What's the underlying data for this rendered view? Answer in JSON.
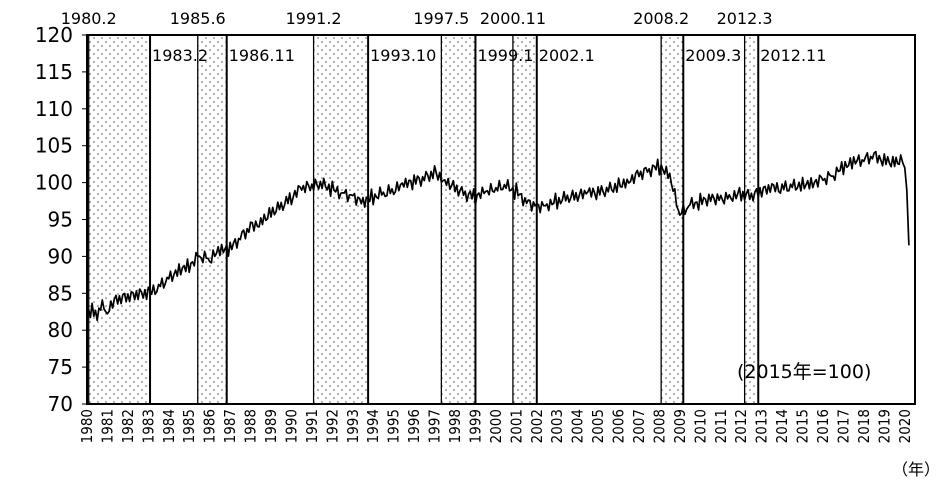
{
  "chart_data": {
    "type": "line",
    "title": "",
    "xlabel": "",
    "ylabel": "",
    "x_unit": "（年）",
    "note": "(2015年=100)",
    "xlim": [
      1980,
      2020.5
    ],
    "ylim": [
      70,
      120
    ],
    "y_ticks": [
      "120",
      "115",
      "110",
      "105",
      "100",
      "95",
      "90",
      "85",
      "80",
      "75",
      "70"
    ],
    "x_ticks": [
      "1980",
      "1981",
      "1982",
      "1983",
      "1984",
      "1985",
      "1986",
      "1987",
      "1988",
      "1989",
      "1990",
      "1991",
      "1992",
      "1993",
      "1994",
      "1995",
      "1996",
      "1997",
      "1998",
      "1999",
      "2000",
      "2001",
      "2002",
      "2003",
      "2004",
      "2005",
      "2006",
      "2007",
      "2008",
      "2009",
      "2010",
      "2011",
      "2012",
      "2013",
      "2014",
      "2015",
      "2016",
      "2017",
      "2018",
      "2019",
      "2020"
    ],
    "recession_bands": [
      {
        "start": "1980.2",
        "end": "1983.2"
      },
      {
        "start": "1985.6",
        "end": "1986.11"
      },
      {
        "start": "1991.2",
        "end": "1993.10"
      },
      {
        "start": "1997.5",
        "end": "1999.1"
      },
      {
        "start": "2000.11",
        "end": "2002.1"
      },
      {
        "start": "2008.2",
        "end": "2009.3"
      },
      {
        "start": "2012.3",
        "end": "2012.11"
      }
    ],
    "series": [
      {
        "x": [
          1980.0,
          1980.25,
          1980.5,
          1980.75,
          1981.0,
          1981.5,
          1982.0,
          1982.5,
          1983.0,
          1983.5,
          1984.0,
          1984.5,
          1985.0,
          1985.5,
          1986.0,
          1986.5,
          1987.0,
          1987.5,
          1988.0,
          1988.5,
          1989.0,
          1989.5,
          1990.0,
          1990.5,
          1991.0,
          1991.5,
          1992.0,
          1992.5,
          1993.0,
          1993.5,
          1994.0,
          1994.5,
          1995.0,
          1995.5,
          1996.0,
          1996.5,
          1997.0,
          1997.5,
          1998.0,
          1998.5,
          1999.0,
          1999.5,
          2000.0,
          2000.5,
          2001.0,
          2001.5,
          2002.0,
          2002.5,
          2003.0,
          2003.5,
          2004.0,
          2004.5,
          2005.0,
          2005.5,
          2006.0,
          2006.5,
          2007.0,
          2007.5,
          2008.0,
          2008.5,
          2009.0,
          2009.5,
          2010.0,
          2010.5,
          2011.0,
          2011.5,
          2012.0,
          2012.5,
          2013.0,
          2013.5,
          2014.0,
          2014.5,
          2015.0,
          2015.5,
          2016.0,
          2016.5,
          2017.0,
          2017.5,
          2018.0,
          2018.5,
          2019.0,
          2019.5,
          2019.8,
          2020.0,
          2020.1,
          2020.2
        ],
        "values": [
          81.5,
          83.0,
          82.2,
          83.8,
          83.0,
          84.0,
          84.3,
          84.6,
          84.8,
          86.0,
          87.2,
          88.5,
          89.0,
          90.0,
          89.5,
          90.5,
          90.8,
          92.5,
          94.0,
          95.0,
          96.2,
          97.0,
          98.0,
          99.0,
          99.3,
          99.5,
          99.0,
          98.8,
          98.3,
          97.8,
          98.2,
          98.4,
          98.8,
          99.4,
          100.0,
          100.6,
          101.5,
          100.6,
          99.5,
          98.6,
          98.0,
          98.4,
          99.0,
          99.3,
          98.8,
          97.7,
          97.0,
          97.3,
          97.5,
          97.8,
          98.0,
          98.3,
          98.6,
          99.1,
          99.8,
          100.6,
          101.3,
          101.8,
          102.0,
          100.5,
          95.5,
          96.8,
          97.6,
          98.2,
          98.0,
          98.4,
          98.3,
          98.0,
          98.6,
          99.0,
          99.3,
          99.6,
          100.0,
          100.3,
          100.5,
          101.0,
          101.8,
          102.5,
          103.0,
          103.5,
          103.3,
          103.0,
          103.4,
          102.0,
          99.0,
          91.5
        ]
      }
    ]
  }
}
